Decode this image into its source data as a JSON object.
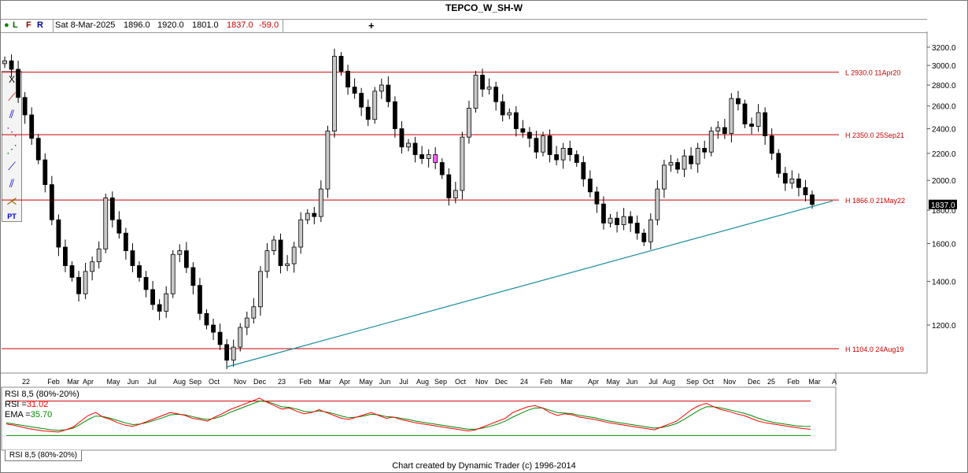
{
  "title": "TEPCO_W_SH-W",
  "header": {
    "buttons": [
      "L",
      "F",
      "R"
    ],
    "date": "Sat 8-Mar-2025",
    "open": "1896.0",
    "high": "1920.0",
    "low": "1801.0",
    "close": "1837.0",
    "change": "-59.0",
    "add_symbol": "+"
  },
  "toolbar": {
    "close": "X",
    "tools": [
      "T",
      "P",
      "A",
      "B",
      "R",
      "R",
      "G",
      "PT"
    ]
  },
  "price_axis": {
    "ticks": [
      3200,
      3000,
      2800,
      2600,
      2400,
      2200,
      2000,
      1800,
      1600,
      1400,
      1200
    ],
    "tick_labels": [
      "3200.0",
      "3000.0",
      "2800.0",
      "2600.0",
      "2400.0",
      "2200.0",
      "2000.0",
      "1800.0",
      "1600.0",
      "1400.0",
      "1200.0"
    ],
    "last_price_label": "1837.0",
    "scale": "log"
  },
  "time_axis": {
    "labels": [
      "22",
      "Feb",
      "Mar",
      "Apr",
      "May",
      "Jun",
      "Jul",
      "Aug",
      "Sep",
      "Oct",
      "Nov",
      "Dec",
      "23",
      "Feb",
      "Mar",
      "Apr",
      "May",
      "Jun",
      "Jul",
      "Aug",
      "Sep",
      "Oct",
      "Nov",
      "Dec",
      "24",
      "Feb",
      "Mar",
      "Apr",
      "May",
      "Jun",
      "Jul",
      "Aug",
      "Sep",
      "Oct",
      "Nov",
      "Dec",
      "25",
      "Feb",
      "Mar",
      "A"
    ]
  },
  "levels": [
    {
      "price": 2930,
      "label": "L 2930.0 11Apr20"
    },
    {
      "price": 2350,
      "label": "H 2350.0 25Sep21"
    },
    {
      "price": 1866,
      "label": "H 1866.0 21May22"
    },
    {
      "price": 1104,
      "label": "H 1104.0 24Aug19"
    }
  ],
  "colors": {
    "level_line": "#cc0000",
    "trendline": "#1a8a9a",
    "up_candle": "#c8c8c8",
    "down_candle": "#000000",
    "highlight_candle": "#ff66ff",
    "rsi": "#ff0000",
    "ema": "#008800",
    "price_label_bg": "#000000"
  },
  "rsi_panel": {
    "title": "RSI 8,5 (80%-20%)",
    "rsi_label": "RSI =",
    "rsi_value": "31.02",
    "ema_label": "EMA =",
    "ema_value": "35.70",
    "tab": "RSI 8,5 (80%-20%)"
  },
  "footer": "Chart created by Dynamic Trader  (c)  1996-2014",
  "chart_data": {
    "type": "candlestick",
    "title": "TEPCO_W_SH-W",
    "ylim": [
      1000,
      3350
    ],
    "series": [
      {
        "name": "Price",
        "close_path": [
          3050,
          2960,
          2680,
          2520,
          2320,
          2150,
          1970,
          1740,
          1580,
          1480,
          1420,
          1340,
          1450,
          1500,
          1570,
          1880,
          1740,
          1660,
          1560,
          1480,
          1420,
          1360,
          1290,
          1260,
          1340,
          1540,
          1560,
          1470,
          1380,
          1250,
          1200,
          1170,
          1120,
          1060,
          1110,
          1190,
          1230,
          1280,
          1450,
          1560,
          1620,
          1480,
          1490,
          1580,
          1740,
          1780,
          1760,
          1940,
          2380,
          3100,
          2940,
          2780,
          2720,
          2590,
          2480,
          2740,
          2800,
          2640,
          2400,
          2250,
          2280,
          2190,
          2160,
          2190,
          2130,
          2040,
          1880,
          1930,
          2330,
          2580,
          2900,
          2760,
          2780,
          2640,
          2520,
          2540,
          2400,
          2370,
          2320,
          2210,
          2340,
          2190,
          2150,
          2240,
          2190,
          2130,
          2010,
          1920,
          1840,
          1720,
          1750,
          1710,
          1760,
          1720,
          1660,
          1610,
          1740,
          1940,
          2110,
          2130,
          2080,
          2180,
          2120,
          2240,
          2210,
          2380,
          2410,
          2360,
          2670,
          2620,
          2440,
          2420,
          2540,
          2340,
          2200,
          2050,
          1980,
          2010,
          1950,
          1900,
          1837
        ]
      },
      {
        "name": "RSI",
        "values": [
          40,
          38,
          35,
          32,
          30,
          28,
          27,
          26,
          30,
          35,
          45,
          55,
          60,
          52,
          48,
          42,
          38,
          36,
          40,
          45,
          50,
          55,
          60,
          58,
          55,
          50,
          48,
          45,
          52,
          58,
          65,
          70,
          75,
          80,
          85,
          78,
          72,
          66,
          68,
          62,
          58,
          60,
          65,
          60,
          55,
          50,
          48,
          52,
          56,
          60,
          55,
          50,
          52,
          48,
          45,
          42,
          40,
          38,
          36,
          34,
          32,
          30,
          28,
          30,
          35,
          40,
          45,
          50,
          60,
          65,
          70,
          72,
          68,
          60,
          55,
          58,
          56,
          52,
          50,
          48,
          45,
          42,
          40,
          38,
          36,
          34,
          32,
          30,
          35,
          40,
          45,
          55,
          65,
          72,
          76,
          70,
          65,
          62,
          58,
          55,
          50,
          45,
          42,
          40,
          38,
          36,
          34,
          32,
          31.02
        ]
      },
      {
        "name": "EMA",
        "values": [
          42,
          40,
          38,
          36,
          34,
          32,
          30,
          29,
          30,
          33,
          40,
          48,
          54,
          53,
          50,
          46,
          42,
          39,
          40,
          43,
          47,
          51,
          56,
          57,
          56,
          53,
          50,
          48,
          50,
          54,
          60,
          65,
          70,
          75,
          80,
          79,
          75,
          70,
          69,
          66,
          62,
          61,
          63,
          61,
          58,
          54,
          51,
          52,
          54,
          57,
          56,
          53,
          52,
          50,
          48,
          45,
          43,
          41,
          39,
          37,
          35,
          33,
          31,
          31,
          33,
          36,
          40,
          45,
          52,
          58,
          64,
          68,
          68,
          64,
          60,
          59,
          58,
          55,
          53,
          51,
          48,
          45,
          43,
          41,
          39,
          37,
          35,
          33,
          34,
          37,
          41,
          48,
          56,
          64,
          70,
          70,
          68,
          65,
          62,
          59,
          55,
          50,
          46,
          43,
          41,
          39,
          37,
          36,
          35.7
        ]
      }
    ],
    "trendline": {
      "start": {
        "date": "Oct-2022",
        "price": 1035
      },
      "end": {
        "date": "Mar-2025",
        "price": 1860
      }
    },
    "highlight_bar": "Sep-2023",
    "rsi_levels": [
      80,
      20
    ]
  }
}
